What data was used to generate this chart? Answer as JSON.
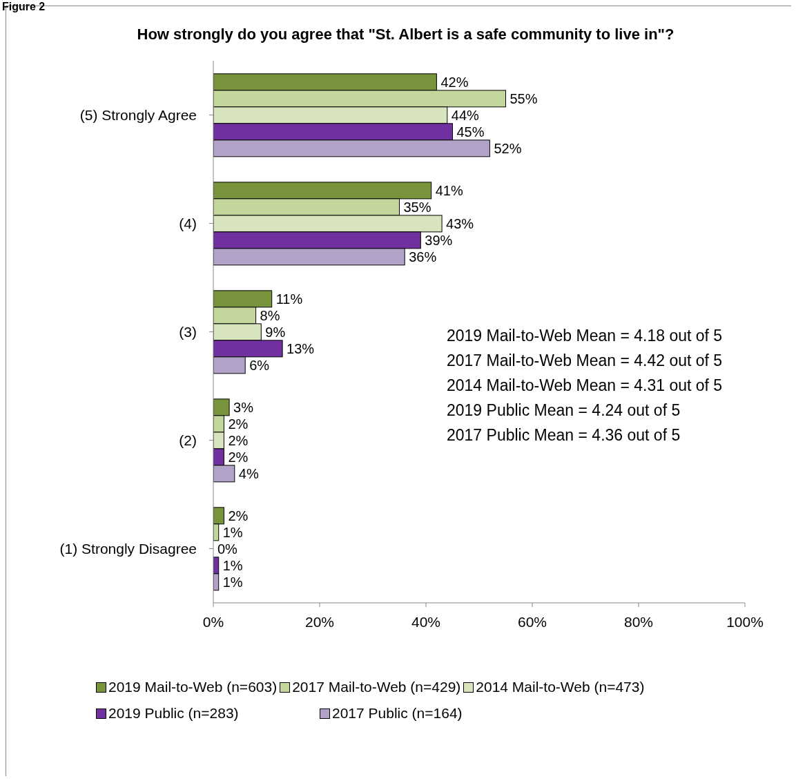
{
  "chart_data": {
    "type": "bar",
    "orientation": "horizontal",
    "title": "How strongly do you agree that \"St. Albert is a safe community to live in\"?",
    "categories": [
      "(5) Strongly Agree",
      "(4)",
      "(3)",
      "(2)",
      "(1) Strongly Disagree"
    ],
    "series": [
      {
        "name": "2019 Mail-to-Web (n=603)",
        "color": "#77933c",
        "values": [
          42,
          41,
          11,
          3,
          2
        ],
        "value_labels": [
          "42%",
          "41%",
          "11%",
          "3%",
          "2%"
        ]
      },
      {
        "name": "2017 Mail-to-Web (n=429)",
        "color": "#c3d69b",
        "values": [
          55,
          35,
          8,
          2,
          1
        ],
        "value_labels": [
          "55%",
          "35%",
          "8%",
          "2%",
          "1%"
        ]
      },
      {
        "name": "2014 Mail-to-Web (n=473)",
        "color": "#d7e4bd",
        "values": [
          44,
          43,
          9,
          2,
          0
        ],
        "value_labels": [
          "44%",
          "43%",
          "9%",
          "2%",
          "0%"
        ]
      },
      {
        "name": "2019 Public (n=283)",
        "color": "#7030a0",
        "values": [
          45,
          39,
          13,
          2,
          1
        ],
        "value_labels": [
          "45%",
          "39%",
          "13%",
          "2%",
          "1%"
        ]
      },
      {
        "name": "2017 Public (n=164)",
        "color": "#b3a2c7",
        "values": [
          52,
          36,
          6,
          4,
          1
        ],
        "value_labels": [
          "52%",
          "36%",
          "6%",
          "4%",
          "1%"
        ]
      }
    ],
    "xlim": [
      0,
      100
    ],
    "xticks": [
      {
        "value": 0,
        "label": "0%"
      },
      {
        "value": 20,
        "label": "20%"
      },
      {
        "value": 40,
        "label": "40%"
      },
      {
        "value": 60,
        "label": "60%"
      },
      {
        "value": 80,
        "label": "80%"
      },
      {
        "value": 100,
        "label": "100%"
      }
    ],
    "grid": false,
    "legend": "bottom",
    "annotations": [
      "Figure 2",
      "2019 Mail-to-Web Mean = 4.18 out of 5",
      "2017 Mail-to-Web Mean = 4.42 out of 5",
      "2014 Mail-to-Web Mean = 4.31 out of 5",
      "2019 Public Mean = 4.24 out of 5",
      "2017 Public Mean = 4.36 out of 5"
    ]
  }
}
